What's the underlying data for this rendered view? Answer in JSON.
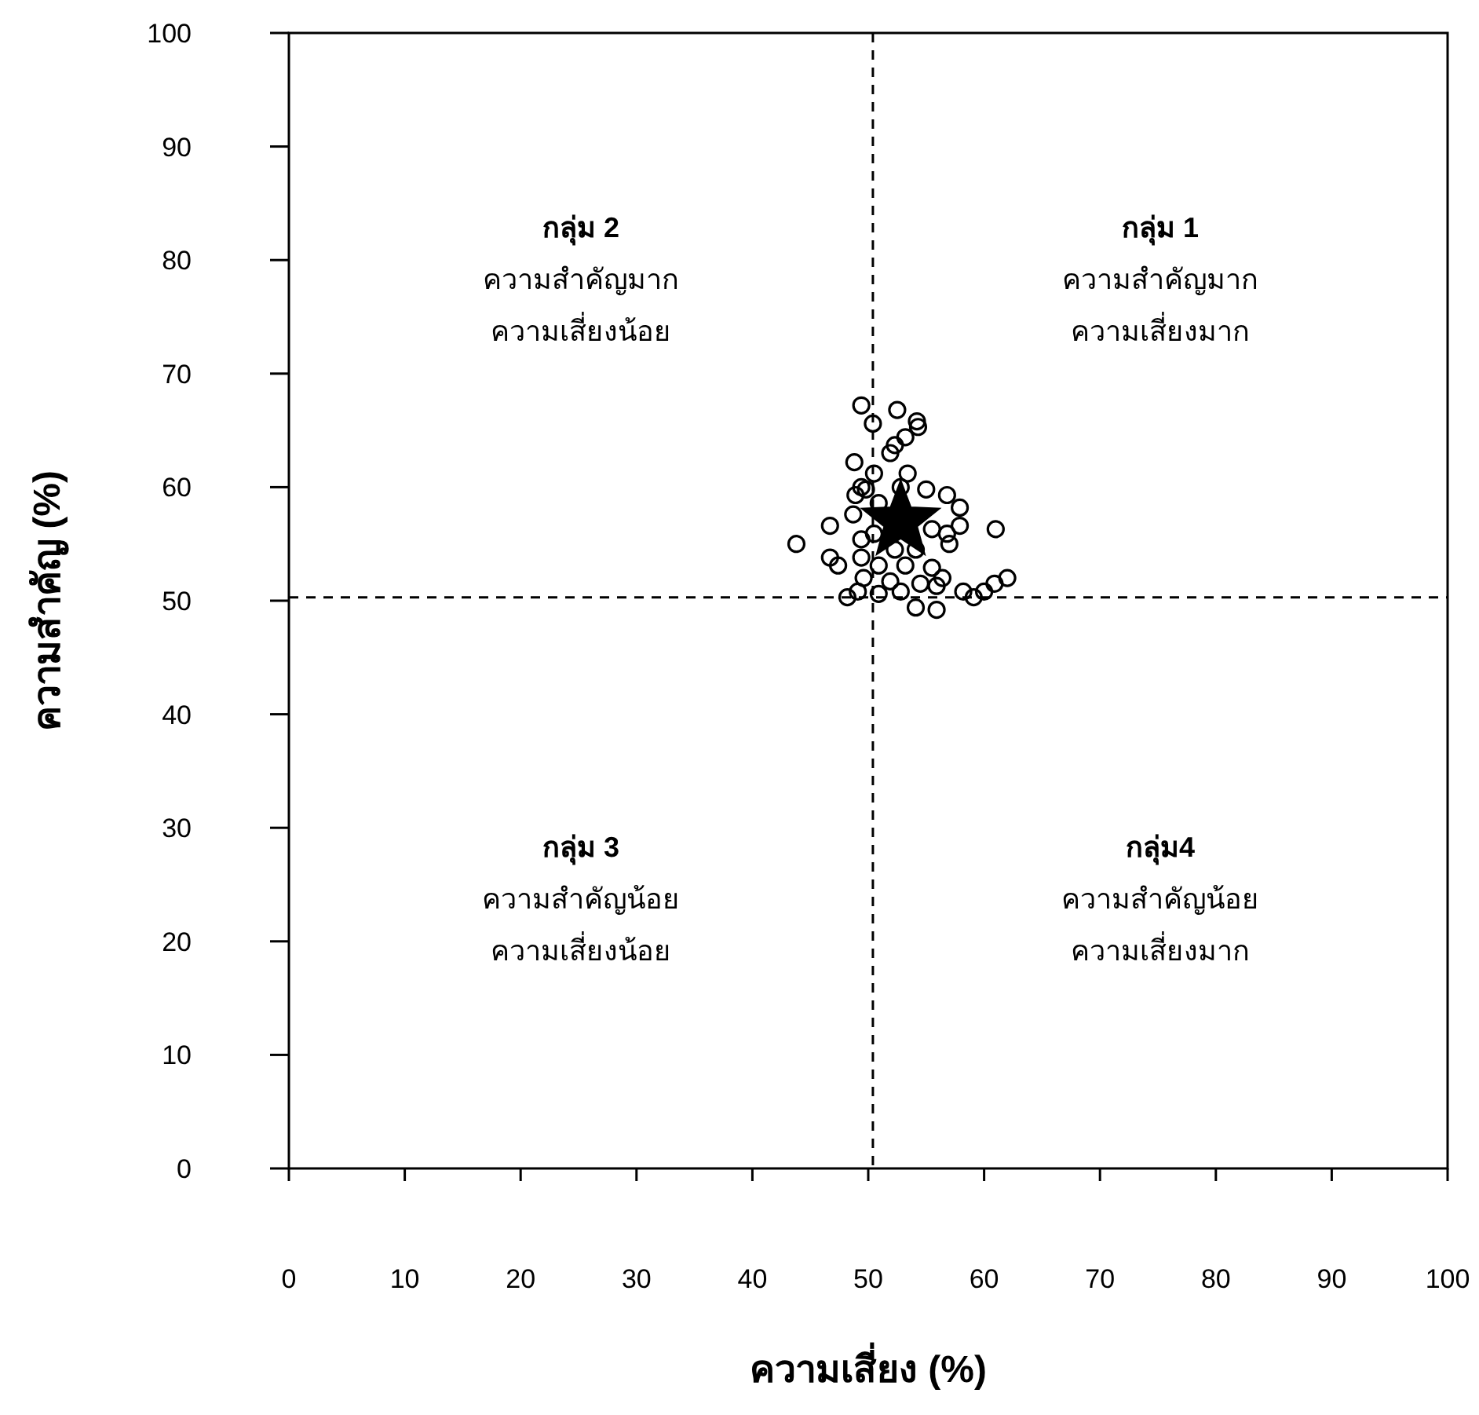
{
  "chart_data": {
    "type": "scatter",
    "xlabel": "ความเสี่ยง (%)",
    "ylabel": "ความสำคัญ (%)",
    "xlim": [
      0,
      100
    ],
    "ylim": [
      0,
      100
    ],
    "xticks": [
      0,
      10,
      20,
      30,
      40,
      50,
      60,
      70,
      80,
      90,
      100
    ],
    "yticks": [
      0,
      10,
      20,
      30,
      40,
      50,
      60,
      70,
      80,
      90,
      100
    ],
    "grid": false,
    "series": [
      {
        "marker": "circle",
        "color": "#000000",
        "x": [
          49.4,
          52.5,
          50.4,
          54.2,
          54.3,
          53.2,
          52.3,
          51.9,
          48.8,
          50.5,
          53.4,
          49.4,
          49.8,
          52.8,
          55.0,
          56.8,
          57.9,
          48.7,
          46.7,
          57.9,
          61.0,
          55.5,
          43.8,
          49.4,
          57.0,
          46.7,
          47.4,
          49.4,
          52.3,
          54.1,
          50.9,
          53.2,
          55.5,
          49.6,
          51.9,
          54.5,
          56.4,
          62.0,
          60.9,
          60.0,
          58.2,
          48.2,
          49.1,
          50.9,
          52.8,
          55.9,
          54.1,
          55.9,
          59.1,
          48.9,
          50.9,
          56.8,
          50.5
        ],
        "values": [
          67.2,
          66.8,
          65.6,
          65.8,
          65.3,
          64.4,
          63.7,
          63.0,
          62.2,
          61.2,
          61.2,
          60.0,
          59.8,
          60.0,
          59.8,
          59.3,
          58.2,
          57.6,
          56.6,
          56.6,
          56.3,
          56.3,
          55.0,
          55.4,
          55.0,
          53.8,
          53.1,
          53.8,
          54.5,
          54.5,
          53.1,
          53.1,
          52.9,
          52.0,
          51.7,
          51.5,
          52.0,
          52.0,
          51.5,
          50.8,
          50.8,
          50.3,
          50.8,
          50.6,
          50.8,
          51.3,
          49.4,
          49.2,
          50.3,
          59.3,
          58.6,
          55.9,
          55.9
        ]
      },
      {
        "marker": "star",
        "color": "#000000",
        "x": [
          52.8
        ],
        "values": [
          57.0
        ]
      }
    ],
    "ref_lines": [
      {
        "axis": "x",
        "value": 50.4,
        "line_style": "dashed",
        "color": "#000000"
      },
      {
        "axis": "y",
        "value": 50.3,
        "line_style": "dashed",
        "color": "#000000"
      }
    ],
    "annotations": [
      "กลุ่ม 2\nความสำคัญมาก\nความเสี่ยงน้อย",
      "กลุ่ม 1\nความสำคัญมาก\nความเสี่ยงมาก",
      "กลุ่ม 3\nความสำคัญน้อย\nความเสี่ยงน้อย",
      "กลุ่ม4\nความสำคัญน้อย\nความเสี่ยงมาก"
    ]
  }
}
